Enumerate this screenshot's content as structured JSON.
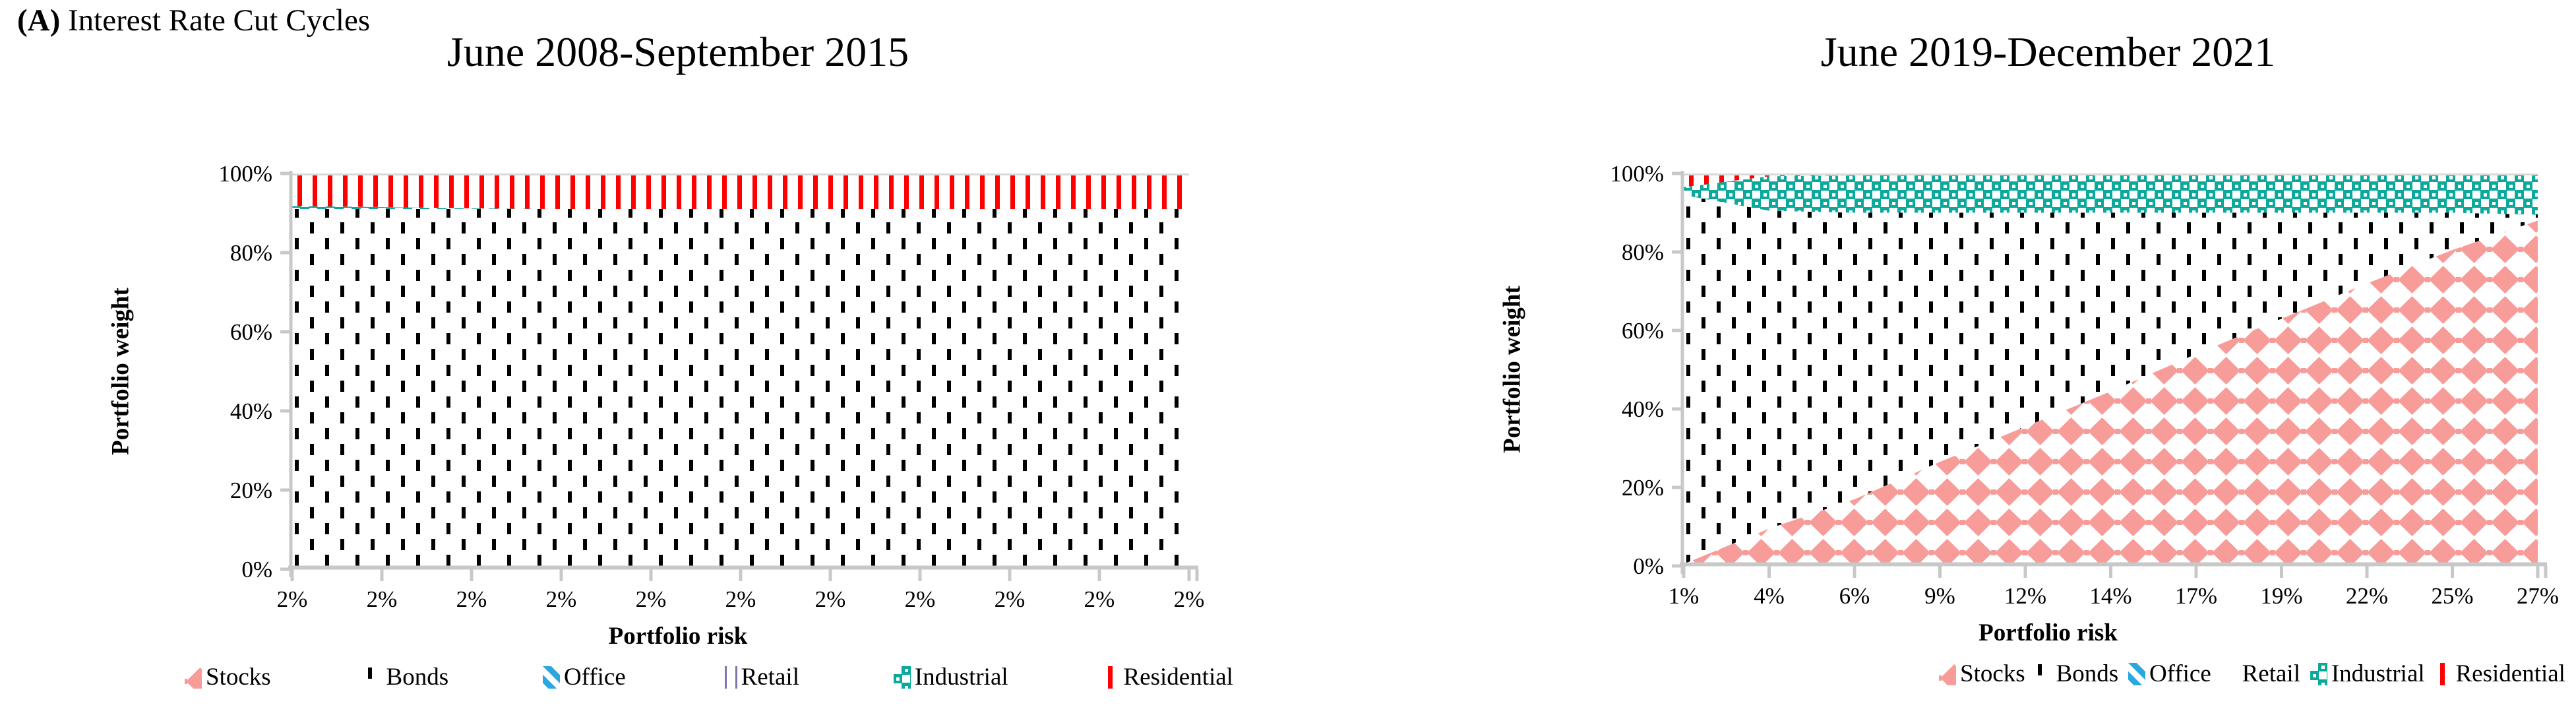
{
  "heading": {
    "marker": "(A)",
    "text": " Interest Rate Cut Cycles"
  },
  "colors": {
    "stocks": "#F79C98",
    "bonds": "#000000",
    "office": "#2BA7DF",
    "retail": "#8173AD",
    "industrial": "#0AA99C",
    "residential": "#FF0000",
    "axis_gray": "#C8C8C8",
    "plot_border_gray": "#D9D9D9"
  },
  "chart_data": [
    {
      "type": "area",
      "stacked": true,
      "title": "June 2008-September 2015",
      "xlabel": "Portfolio risk",
      "ylabel": "Portfolio weight",
      "x_tick_labels": [
        "2%",
        "2%",
        "2%",
        "2%",
        "2%",
        "2%",
        "2%",
        "2%",
        "2%",
        "2%",
        "2%"
      ],
      "y_tick_labels": [
        "0%",
        "20%",
        "40%",
        "60%",
        "80%",
        "100%"
      ],
      "ylim": [
        0,
        100
      ],
      "grid": false,
      "legend_position": "bottom",
      "series": [
        {
          "name": "Stocks",
          "values": [
            0,
            0,
            0,
            0,
            0,
            0,
            0,
            0,
            0,
            0,
            0
          ]
        },
        {
          "name": "Bonds",
          "values": [
            91,
            91,
            91,
            91,
            91,
            91,
            91,
            91,
            91,
            91,
            91
          ]
        },
        {
          "name": "Office",
          "values": [
            0,
            0,
            0,
            0,
            0,
            0,
            0,
            0,
            0,
            0,
            0
          ]
        },
        {
          "name": "Retail",
          "values": [
            0,
            0,
            0,
            0,
            0,
            0,
            0,
            0,
            0,
            0,
            0
          ]
        },
        {
          "name": "Industrial",
          "values": [
            0.8,
            0.5,
            0.2,
            0,
            0,
            0,
            0,
            0,
            0,
            0,
            0
          ]
        },
        {
          "name": "Residential",
          "values": [
            8.2,
            8.5,
            8.8,
            9,
            9,
            9,
            9,
            9,
            9,
            9,
            9
          ]
        }
      ],
      "legend": [
        {
          "key": "stocks",
          "label": "Stocks",
          "swatch": "stocks"
        },
        {
          "key": "bonds",
          "label": "Bonds",
          "swatch": "bonds"
        },
        {
          "key": "office",
          "label": "Office",
          "swatch": "office"
        },
        {
          "key": "retail",
          "label": "Retail",
          "swatch": "retail"
        },
        {
          "key": "industrial",
          "label": "Industrial",
          "swatch": "industrial"
        },
        {
          "key": "residential",
          "label": "Residential",
          "swatch": "residential"
        }
      ]
    },
    {
      "type": "area",
      "stacked": true,
      "title": "June 2019-December 2021",
      "xlabel": "Portfolio risk",
      "ylabel": "Portfolio weight",
      "x_tick_labels": [
        "1%",
        "4%",
        "6%",
        "9%",
        "12%",
        "14%",
        "17%",
        "19%",
        "22%",
        "25%",
        "27%"
      ],
      "y_tick_labels": [
        "0%",
        "20%",
        "40%",
        "60%",
        "80%",
        "100%"
      ],
      "ylim": [
        0,
        100
      ],
      "grid": false,
      "legend_position": "bottom",
      "series": [
        {
          "name": "Stocks",
          "values": [
            0.5,
            9.5,
            17,
            26.5,
            35.5,
            44.5,
            54,
            63,
            72,
            80.5,
            88
          ]
        },
        {
          "name": "Bonds",
          "values": [
            94,
            81,
            73,
            63.5,
            54.5,
            45.5,
            36,
            27,
            18,
            9.5,
            1.5
          ]
        },
        {
          "name": "Office",
          "values": [
            0,
            0,
            0,
            0,
            0,
            0,
            0,
            0,
            0,
            0,
            0
          ]
        },
        {
          "name": "Retail",
          "values": [
            0,
            0,
            0,
            0,
            0,
            0,
            0,
            0,
            0,
            0,
            0
          ]
        },
        {
          "name": "Industrial",
          "values": [
            2,
            8.8,
            9.5,
            9.5,
            9.5,
            9.5,
            9.5,
            9.5,
            9.5,
            9.5,
            10
          ]
        },
        {
          "name": "Residential",
          "values": [
            3.5,
            0.7,
            0.5,
            0.5,
            0.5,
            0.5,
            0.5,
            0.5,
            0.5,
            0.5,
            0.5
          ]
        }
      ],
      "legend": [
        {
          "key": "stocks",
          "label": "Stocks",
          "swatch": "stocks"
        },
        {
          "key": "bonds",
          "label": "Bonds",
          "swatch": "bonds"
        },
        {
          "key": "office",
          "label": "Office",
          "swatch": "office"
        },
        {
          "key": "retail",
          "label": "Retail",
          "swatch": "none"
        },
        {
          "key": "industrial",
          "label": "Industrial",
          "swatch": "industrial"
        },
        {
          "key": "residential",
          "label": "Residential",
          "swatch": "residential"
        }
      ]
    }
  ]
}
